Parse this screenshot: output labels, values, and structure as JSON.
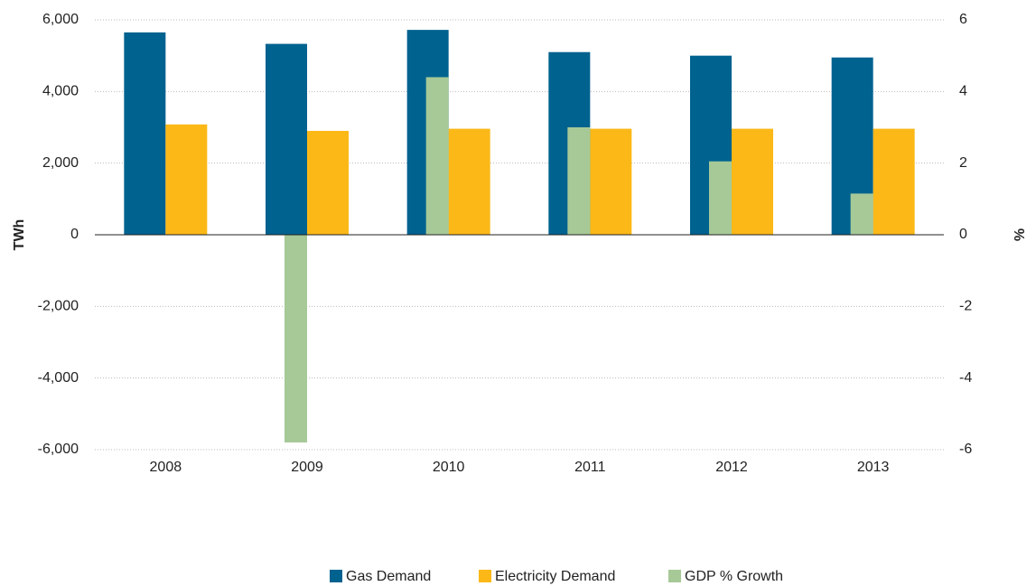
{
  "chart_data": {
    "type": "bar",
    "categories": [
      "2008",
      "2009",
      "2010",
      "2011",
      "2012",
      "2013"
    ],
    "series": [
      {
        "name": "Gas Demand",
        "color": "#00628f",
        "values": [
          5650,
          5330,
          5720,
          5100,
          5000,
          4950
        ]
      },
      {
        "name": "Electricity Demand",
        "color": "#fbb817",
        "values": [
          3080,
          2900,
          2960,
          2960,
          2960,
          2960
        ]
      },
      {
        "name": "GDP % Growth",
        "color": "#a6c997",
        "axis": "y2",
        "values": [
          0,
          -5.8,
          4.4,
          3.0,
          2.05,
          1.15
        ]
      }
    ],
    "ylabel": "TWh",
    "y2label": "%",
    "ylim": [
      -6000,
      6000
    ],
    "yticks": [
      {
        "value": -6000,
        "label": "-6,000"
      },
      {
        "value": -4000,
        "label": "-4,000"
      },
      {
        "value": -2000,
        "label": "-2,000"
      },
      0,
      {
        "value": 2000,
        "label": "2,000"
      },
      {
        "value": 4000,
        "label": "4,000"
      },
      {
        "value": 6000,
        "label": "6,000"
      }
    ],
    "y2lim": [
      -6,
      6
    ],
    "y2ticks": [
      -6,
      -4,
      -2,
      0,
      2,
      4,
      6
    ],
    "grid": true,
    "legend": "bottom"
  }
}
